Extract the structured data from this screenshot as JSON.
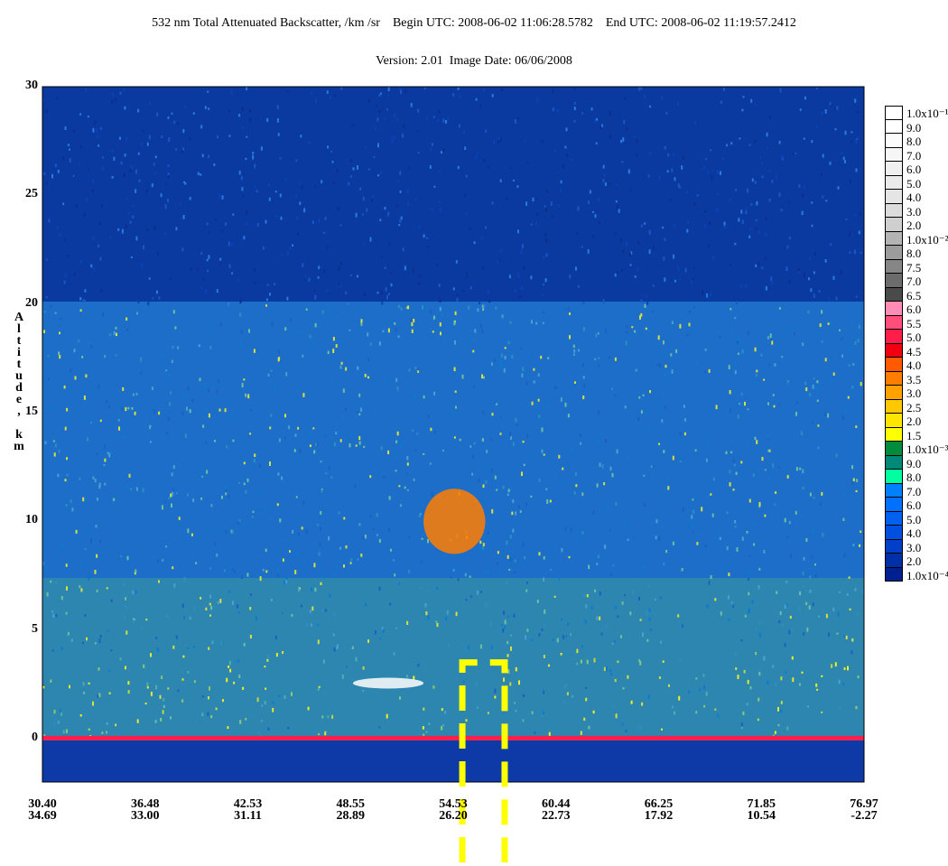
{
  "title_line1": "532 nm Total Attenuated Backscatter, /km /sr    Begin UTC: 2008-06-02 11:06:28.5782    End UTC: 2008-06-02 11:19:57.2412",
  "title_line2": "Version: 2.01  Image Date: 06/06/2008",
  "chart_data": {
    "type": "heatmap",
    "title": "532 nm Total Attenuated Backscatter, /km /sr",
    "ylabel": "Altitude, km",
    "ylim": [
      -2,
      30
    ],
    "y_ticks": [
      "30",
      "25",
      "20",
      "15",
      "10",
      "5",
      "0"
    ],
    "x_ticks": [
      {
        "lat": "30.40",
        "lon": "34.69"
      },
      {
        "lat": "36.48",
        "lon": "33.00"
      },
      {
        "lat": "42.53",
        "lon": "31.11"
      },
      {
        "lat": "48.55",
        "lon": "28.89"
      },
      {
        "lat": "54.53",
        "lon": "26.20"
      },
      {
        "lat": "60.44",
        "lon": "22.73"
      },
      {
        "lat": "66.25",
        "lon": "17.92"
      },
      {
        "lat": "71.85",
        "lon": "10.54"
      },
      {
        "lat": "76.97",
        "lon": "-2.27"
      }
    ],
    "colorbar": [
      {
        "label": "1.0x10⁻¹",
        "color": "#ffffff"
      },
      {
        "label": "9.0",
        "color": "#ffffff"
      },
      {
        "label": "8.0",
        "color": "#fbfbfb"
      },
      {
        "label": "7.0",
        "color": "#f6f6f6"
      },
      {
        "label": "6.0",
        "color": "#f0f0f0"
      },
      {
        "label": "5.0",
        "color": "#ebebeb"
      },
      {
        "label": "4.0",
        "color": "#e5e5e5"
      },
      {
        "label": "3.0",
        "color": "#dcdcdc"
      },
      {
        "label": "2.0",
        "color": "#cfcfcf"
      },
      {
        "label": "1.0x10⁻²",
        "color": "#b4b4b4"
      },
      {
        "label": "8.0",
        "color": "#9c9c9c"
      },
      {
        "label": "7.5",
        "color": "#868686"
      },
      {
        "label": "7.0",
        "color": "#6c6c6c"
      },
      {
        "label": "6.5",
        "color": "#4a4a4a"
      },
      {
        "label": "6.0",
        "color": "#ff8cb4"
      },
      {
        "label": "5.5",
        "color": "#ff4e7a"
      },
      {
        "label": "5.0",
        "color": "#ff1e4a"
      },
      {
        "label": "4.5",
        "color": "#f00010"
      },
      {
        "label": "4.0",
        "color": "#ff5a00"
      },
      {
        "label": "3.5",
        "color": "#ff7e00"
      },
      {
        "label": "3.0",
        "color": "#ffa200"
      },
      {
        "label": "2.5",
        "color": "#ffc800"
      },
      {
        "label": "2.0",
        "color": "#ffe600"
      },
      {
        "label": "1.5",
        "color": "#ffff00"
      },
      {
        "label": "1.0x10⁻³",
        "color": "#008c3c"
      },
      {
        "label": "9.0",
        "color": "#008878"
      },
      {
        "label": "8.0",
        "color": "#00ffa0"
      },
      {
        "label": "7.0",
        "color": "#0080ff"
      },
      {
        "label": "6.0",
        "color": "#0070ff"
      },
      {
        "label": "5.0",
        "color": "#0060f0"
      },
      {
        "label": "4.0",
        "color": "#0050e0"
      },
      {
        "label": "3.0",
        "color": "#0040c8"
      },
      {
        "label": "2.0",
        "color": "#0030a8"
      },
      {
        "label": "1.0x10⁻⁴",
        "color": "#002090"
      }
    ],
    "features": [
      {
        "name": "surface_return",
        "altitude_km": 0,
        "color": "#ff1e4a"
      },
      {
        "name": "cirrus_cloud",
        "lat_range": [
          52.0,
          55.5
        ],
        "altitude_km": [
          8.5,
          11.5
        ],
        "color": "#ff7e00"
      },
      {
        "name": "low_cloud_tops",
        "lat_range": [
          48.0,
          52.0
        ],
        "altitude_km": [
          2.3,
          2.8
        ],
        "color": "#ffffff"
      }
    ],
    "annotation_color": "#ffff00"
  }
}
